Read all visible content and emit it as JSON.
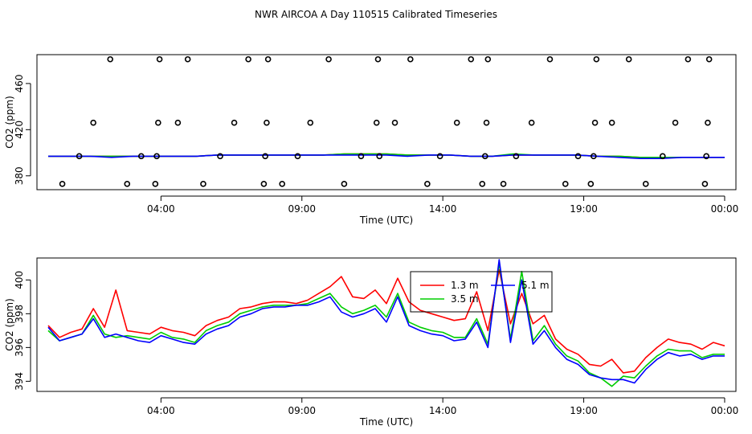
{
  "chart_data": {
    "title": "NWR AIRCOA A  Day 110515  Calibrated Timeseries",
    "panels": [
      {
        "type": "scatter+line",
        "xlabel": "Time (UTC)",
        "ylabel": "CO2 (ppm)",
        "x_ticks": [
          {
            "label": "04:00",
            "hours": 4
          },
          {
            "label": "09:00",
            "hours": 9
          },
          {
            "label": "14:00",
            "hours": 14
          },
          {
            "label": "19:00",
            "hours": 19
          },
          {
            "label": "00:00",
            "hours": 24
          }
        ],
        "y_ticks": [
          380,
          420,
          460
        ],
        "xlim_hours": [
          -0.4,
          24.4
        ],
        "ylim": [
          368,
          485
        ],
        "calibration_points": {
          "x_hours": [
            0.5,
            1.1,
            1.6,
            2.2,
            2.8,
            3.3,
            3.8,
            3.85,
            3.9,
            3.95,
            4.6,
            4.95,
            5.5,
            6.1,
            6.6,
            7.1,
            7.65,
            7.7,
            7.75,
            7.8,
            8.3,
            8.85,
            9.3,
            9.95,
            10.5,
            11.1,
            11.65,
            11.7,
            11.75,
            12.3,
            12.85,
            13.45,
            13.9,
            14.5,
            15.0,
            15.4,
            15.5,
            15.55,
            15.6,
            16.15,
            16.6,
            17.15,
            17.8,
            18.35,
            18.8,
            19.25,
            19.35,
            19.4,
            19.45,
            20.0,
            20.6,
            21.2,
            21.8,
            22.25,
            22.7,
            23.3,
            23.35,
            23.4,
            23.45
          ],
          "y": [
            373,
            397,
            426,
            481,
            373,
            397,
            373,
            397,
            426,
            481,
            426,
            481,
            373,
            397,
            426,
            481,
            373,
            397,
            426,
            481,
            373,
            397,
            426,
            481,
            373,
            397,
            426,
            481,
            397,
            426,
            481,
            373,
            397,
            426,
            481,
            373,
            397,
            426,
            481,
            373,
            397,
            426,
            481,
            373,
            397,
            373,
            397,
            426,
            481,
            426,
            481,
            373,
            397,
            426,
            481,
            373,
            397,
            426,
            481
          ]
        },
        "series": [
          {
            "name": "1.3 m",
            "color": "#ff0000",
            "y": [
              397,
              397,
              397,
              397,
              397,
              397,
              397,
              397,
              398,
              398,
              398,
              398,
              398,
              398,
              399,
              399,
              399,
              398,
              398,
              398,
              397,
              397,
              398,
              398,
              398,
              398,
              397,
              397,
              396,
              396,
              396,
              396,
              396
            ]
          },
          {
            "name": "3.5 m",
            "color": "#00cd00",
            "y": [
              397,
              397,
              397,
              397,
              397,
              397,
              397,
              397,
              398,
              398,
              398,
              398,
              398,
              398,
              399,
              399,
              399,
              398,
              398,
              398,
              397,
              397,
              399,
              398,
              398,
              398,
              397,
              397,
              396,
              396,
              396,
              396,
              396
            ]
          },
          {
            "name": "5.1 m",
            "color": "#0000ff",
            "y": [
              397,
              397,
              397,
              396,
              397,
              397,
              397,
              397,
              398,
              398,
              398,
              398,
              398,
              398,
              398,
              398,
              398,
              397,
              398,
              398,
              397,
              397,
              398,
              398,
              398,
              398,
              397,
              396,
              395,
              395,
              396,
              396,
              396
            ]
          }
        ],
        "series_x_hours": [
          0,
          0.75,
          1.5,
          2.25,
          3,
          3.75,
          4.5,
          5.25,
          6,
          6.75,
          7.5,
          8.25,
          9,
          9.75,
          10.5,
          11.25,
          12,
          12.75,
          13.5,
          14.25,
          15,
          15.75,
          16.5,
          17.25,
          18,
          18.75,
          19.5,
          20.25,
          21,
          21.75,
          22.5,
          23.25,
          24
        ]
      },
      {
        "type": "line",
        "xlabel": "Time (UTC)",
        "ylabel": "CO2 (ppm)",
        "x_ticks": [
          {
            "label": "04:00",
            "hours": 4
          },
          {
            "label": "09:00",
            "hours": 9
          },
          {
            "label": "14:00",
            "hours": 14
          },
          {
            "label": "19:00",
            "hours": 19
          },
          {
            "label": "00:00",
            "hours": 24
          }
        ],
        "y_ticks": [
          394,
          396,
          398,
          400
        ],
        "xlim_hours": [
          -0.4,
          24.4
        ],
        "ylim": [
          393.4,
          401.3
        ],
        "legend": {
          "placement": "top-center",
          "entries": [
            "1.3 m",
            "3.5 m",
            "5.1 m"
          ]
        },
        "series_x_hours": [
          0,
          0.4,
          0.8,
          1.2,
          1.6,
          2.0,
          2.4,
          2.8,
          3.2,
          3.6,
          4.0,
          4.4,
          4.8,
          5.2,
          5.6,
          6.0,
          6.4,
          6.8,
          7.2,
          7.6,
          8.0,
          8.4,
          8.8,
          9.2,
          9.6,
          10.0,
          10.4,
          10.8,
          11.2,
          11.6,
          12.0,
          12.4,
          12.8,
          13.2,
          13.6,
          14.0,
          14.4,
          14.8,
          15.2,
          15.6,
          16.0,
          16.4,
          16.8,
          17.2,
          17.6,
          18.0,
          18.4,
          18.8,
          19.2,
          19.6,
          20.0,
          20.4,
          20.8,
          21.2,
          21.6,
          22.0,
          22.4,
          22.8,
          23.2,
          23.6,
          24.0
        ],
        "series": [
          {
            "name": "1.3 m",
            "color": "#ff0000",
            "y": [
              397.3,
              396.6,
              396.9,
              397.1,
              398.3,
              397.2,
              399.4,
              397.0,
              396.9,
              396.8,
              397.2,
              397.0,
              396.9,
              396.7,
              397.3,
              397.6,
              397.8,
              398.3,
              398.4,
              398.6,
              398.7,
              398.7,
              398.6,
              398.8,
              399.2,
              399.6,
              400.2,
              399.0,
              398.9,
              399.4,
              398.6,
              400.1,
              398.7,
              398.2,
              398.0,
              397.8,
              397.6,
              397.7,
              399.3,
              397.0,
              400.6,
              397.4,
              399.2,
              397.4,
              397.9,
              396.5,
              395.9,
              395.6,
              395.0,
              394.9,
              395.3,
              394.5,
              394.6,
              395.4,
              396.0,
              396.5,
              396.3,
              396.2,
              395.9,
              396.3,
              396.1
            ]
          },
          {
            "name": "3.5 m",
            "color": "#00cd00",
            "y": [
              397.0,
              396.4,
              396.6,
              396.8,
              397.9,
              396.8,
              396.6,
              396.7,
              396.6,
              396.5,
              396.9,
              396.6,
              396.5,
              396.3,
              397.0,
              397.3,
              397.5,
              398.0,
              398.2,
              398.4,
              398.5,
              398.5,
              398.5,
              398.6,
              398.9,
              399.2,
              398.4,
              398.0,
              398.2,
              398.5,
              397.8,
              399.2,
              397.5,
              397.2,
              397.0,
              396.9,
              396.6,
              396.6,
              397.7,
              396.2,
              401.0,
              396.5,
              400.5,
              396.4,
              397.3,
              396.2,
              395.5,
              395.2,
              394.5,
              394.2,
              393.7,
              394.3,
              394.2,
              394.9,
              395.5,
              395.9,
              395.8,
              395.8,
              395.4,
              395.6,
              395.6
            ]
          },
          {
            "name": "5.1 m",
            "color": "#0000ff",
            "y": [
              397.2,
              396.4,
              396.6,
              396.8,
              397.7,
              396.6,
              396.8,
              396.6,
              396.4,
              396.3,
              396.7,
              396.5,
              396.3,
              396.2,
              396.8,
              397.1,
              397.3,
              397.8,
              398.0,
              398.3,
              398.4,
              398.4,
              398.5,
              398.5,
              398.7,
              399.0,
              398.1,
              397.8,
              398.0,
              398.3,
              397.5,
              399.0,
              397.3,
              397.0,
              396.8,
              396.7,
              396.4,
              396.5,
              397.5,
              396.0,
              401.2,
              396.3,
              400.0,
              396.2,
              397.0,
              396.0,
              395.3,
              395.0,
              394.4,
              394.2,
              394.1,
              394.1,
              393.9,
              394.7,
              395.3,
              395.7,
              395.5,
              395.6,
              395.3,
              395.5,
              395.5
            ]
          }
        ]
      }
    ]
  }
}
